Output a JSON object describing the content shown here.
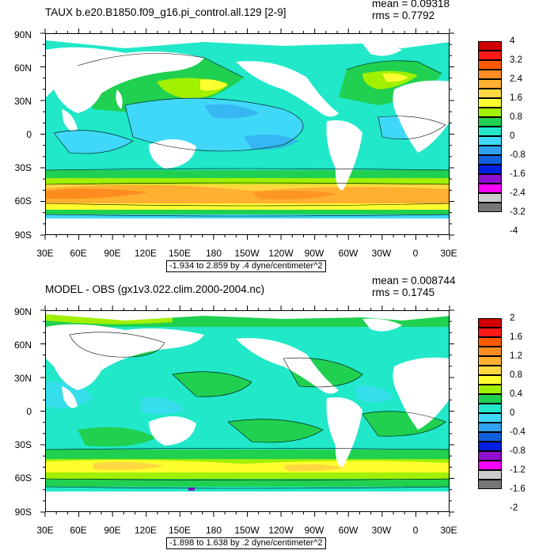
{
  "panels": [
    {
      "title": "TAUX b.e20.B1850.f09_g16.pi_control.all.129 [2-9]",
      "stats": [
        "mean = 0.09318",
        "rms = 0.7792"
      ],
      "range": "-1.934 to 2.859 by .4 dyne/centimeter^2",
      "colorbar": {
        "colors": [
          "#d00000",
          "#ff1818",
          "#ff5a00",
          "#ff8c20",
          "#ffb030",
          "#ffd840",
          "#ffff30",
          "#a0f000",
          "#20d050",
          "#20e8c8",
          "#40d8f8",
          "#30a0f0",
          "#1060e0",
          "#0020e0",
          "#9010d0",
          "#ff00ff",
          "#cccccc",
          "#777777"
        ],
        "labels": [
          "4",
          "3.2",
          "2.4",
          "1.6",
          "0.8",
          "0",
          "-0.8",
          "-1.6",
          "-2.4",
          "-3.2",
          "-4"
        ]
      }
    },
    {
      "title": "MODEL - OBS (gx1v3.022.clim.2000-2004.nc)",
      "stats": [
        "mean = 0.008744",
        "rms = 0.1745"
      ],
      "range": "-1.898 to 1.638 by .2 dyne/centimeter^2",
      "colorbar": {
        "colors": [
          "#d00000",
          "#ff1818",
          "#ff5a00",
          "#ff8c20",
          "#ffb030",
          "#ffd840",
          "#ffff30",
          "#a0f000",
          "#20d050",
          "#20e8c8",
          "#40d8f8",
          "#30a0f0",
          "#1060e0",
          "#0020e0",
          "#9010d0",
          "#ff00ff",
          "#cccccc",
          "#777777"
        ],
        "labels": [
          "2",
          "1.6",
          "1.2",
          "0.8",
          "0.4",
          "0",
          "-0.4",
          "-0.8",
          "-1.2",
          "-1.6",
          "-2"
        ]
      }
    }
  ],
  "axes": {
    "lat_labels": [
      "90N",
      "60N",
      "30N",
      "0",
      "30S",
      "60S",
      "90S"
    ],
    "lon_labels": [
      "30E",
      "60E",
      "90E",
      "120E",
      "150E",
      "180",
      "150W",
      "120W",
      "90W",
      "60W",
      "30W",
      "0",
      "30E"
    ]
  },
  "colors": {
    "land": "#ffffff",
    "contour": "#000000"
  }
}
